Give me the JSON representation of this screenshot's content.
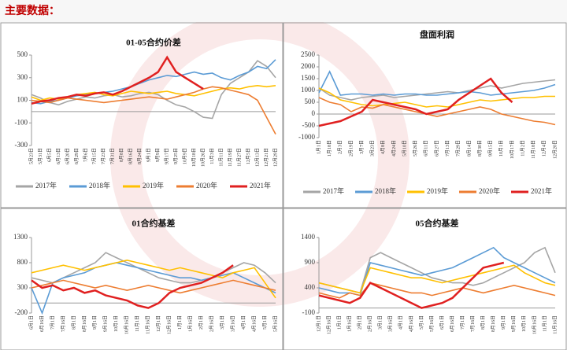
{
  "header": {
    "title": "主要数据："
  },
  "chart_data": [
    {
      "type": "line",
      "title": "01-05合约价差",
      "categories": [
        "5月23日",
        "5月31日",
        "6月5日",
        "6月13日",
        "6月20日",
        "6月29日",
        "7月6日",
        "7月15日",
        "7月23日",
        "7月31日",
        "8月8日",
        "8月16日",
        "8月24日",
        "9月1日",
        "9月9日",
        "9月17日",
        "9月25日",
        "10月9日",
        "10月18日",
        "10月26日",
        "11月3日",
        "11月11日",
        "11月19日",
        "11月27日",
        "12月5日",
        "12月13日",
        "12月21日",
        "12月29日"
      ],
      "ylim": [
        -300,
        500
      ],
      "yticks": [
        -300,
        -100,
        100,
        300,
        500
      ],
      "series": [
        {
          "name": "2017年",
          "color": "#a5a5a5",
          "values": [
            150,
            120,
            80,
            60,
            90,
            110,
            130,
            120,
            140,
            150,
            130,
            140,
            160,
            170,
            150,
            100,
            60,
            40,
            0,
            -50,
            -60,
            150,
            250,
            300,
            350,
            450,
            400,
            300
          ]
        },
        {
          "name": "2018年",
          "color": "#5b9bd5",
          "values": [
            80,
            70,
            90,
            100,
            120,
            140,
            150,
            160,
            170,
            180,
            200,
            220,
            250,
            280,
            300,
            320,
            310,
            330,
            350,
            330,
            340,
            300,
            280,
            320,
            350,
            400,
            380,
            460
          ]
        },
        {
          "name": "2019年",
          "color": "#ffc000",
          "values": [
            130,
            100,
            120,
            110,
            130,
            150,
            160,
            170,
            150,
            140,
            160,
            180,
            170,
            160,
            170,
            180,
            160,
            150,
            140,
            160,
            180,
            200,
            210,
            200,
            220,
            230,
            220,
            230
          ]
        },
        {
          "name": "2020年",
          "color": "#ed7d31",
          "values": [
            100,
            90,
            80,
            100,
            120,
            110,
            100,
            90,
            80,
            90,
            100,
            110,
            120,
            130,
            120,
            110,
            130,
            150,
            170,
            200,
            220,
            210,
            190,
            170,
            150,
            100,
            -50,
            -200
          ]
        },
        {
          "name": "2021年",
          "color": "#e02020",
          "values": [
            70,
            90,
            100,
            120,
            130,
            150,
            140,
            160,
            170,
            150,
            180,
            220,
            260,
            300,
            350,
            480,
            350,
            300,
            250,
            200,
            null,
            null,
            null,
            null,
            null,
            null,
            null,
            null
          ]
        }
      ]
    },
    {
      "type": "line",
      "title": "盘面利润",
      "categories": [
        "1月1日",
        "1月18日",
        "2月3日",
        "2月19日",
        "3月7日",
        "3月23日",
        "4月8日",
        "4月24日",
        "5月10日",
        "5月26日",
        "6月11日",
        "6月27日",
        "7月13日",
        "7月29日",
        "8月14日",
        "8月30日",
        "9月15日",
        "10月1日",
        "10月17日",
        "11月2日",
        "11月18日",
        "12月4日",
        "12月20日"
      ],
      "ylim": [
        -1000,
        2500
      ],
      "yticks": [
        -1000,
        -500,
        0,
        500,
        1000,
        1500,
        2000,
        2500
      ],
      "series": [
        {
          "name": "2017年",
          "color": "#a5a5a5",
          "values": [
            1100,
            800,
            700,
            600,
            700,
            750,
            800,
            700,
            750,
            800,
            850,
            900,
            950,
            900,
            1000,
            1100,
            1200,
            1100,
            1200,
            1300,
            1350,
            1400,
            1450
          ]
        },
        {
          "name": "2018年",
          "color": "#5b9bd5",
          "values": [
            900,
            1800,
            800,
            850,
            850,
            800,
            850,
            800,
            850,
            850,
            800,
            800,
            850,
            900,
            950,
            900,
            800,
            850,
            900,
            950,
            1000,
            1100,
            1250
          ]
        },
        {
          "name": "2019年",
          "color": "#ffc000",
          "values": [
            1100,
            900,
            600,
            500,
            400,
            350,
            400,
            450,
            500,
            400,
            300,
            350,
            300,
            400,
            500,
            600,
            550,
            600,
            650,
            700,
            700,
            750,
            750
          ]
        },
        {
          "name": "2020年",
          "color": "#ed7d31",
          "values": [
            700,
            500,
            400,
            100,
            300,
            250,
            400,
            300,
            200,
            100,
            0,
            -100,
            0,
            100,
            200,
            300,
            200,
            0,
            -100,
            -200,
            -300,
            -350,
            -450
          ]
        },
        {
          "name": "2021年",
          "color": "#e02020",
          "values": [
            -500,
            -400,
            -300,
            -100,
            100,
            600,
            500,
            400,
            300,
            200,
            0,
            100,
            200,
            600,
            900,
            1200,
            1500,
            900,
            500,
            null,
            null,
            null,
            null
          ]
        }
      ]
    },
    {
      "type": "line",
      "title": "01合约基差",
      "categories": [
        "6月1日",
        "6月16日",
        "7月1日",
        "7月16日",
        "8月1日",
        "8月16日",
        "9月1日",
        "9月16日",
        "10月1日",
        "10月16日",
        "11月1日",
        "11月16日",
        "12月1日",
        "12月16日",
        "1月1日",
        "1月16日",
        "2月1日",
        "2月16日",
        "3月1日",
        "3月16日",
        "4月1日",
        "4月16日",
        "5月1日",
        "5月16日"
      ],
      "ylim": [
        -200,
        1300
      ],
      "yticks": [
        -200,
        300,
        800,
        1300
      ],
      "series": [
        {
          "color": "#a5a5a5",
          "values": [
            500,
            450,
            400,
            500,
            600,
            700,
            800,
            1000,
            900,
            800,
            700,
            600,
            500,
            450,
            400,
            400,
            450,
            500,
            600,
            700,
            800,
            750,
            600,
            400
          ]
        },
        {
          "color": "#5b9bd5",
          "values": [
            300,
            -200,
            400,
            500,
            550,
            600,
            700,
            750,
            800,
            750,
            700,
            650,
            600,
            550,
            500,
            500,
            450,
            500,
            550,
            600,
            500,
            400,
            300,
            200
          ]
        },
        {
          "color": "#ffc000",
          "values": [
            600,
            650,
            700,
            750,
            700,
            650,
            700,
            750,
            800,
            850,
            800,
            750,
            700,
            650,
            700,
            650,
            600,
            550,
            500,
            600,
            650,
            700,
            400,
            100
          ]
        },
        {
          "color": "#ed7d31",
          "values": [
            300,
            350,
            400,
            450,
            400,
            350,
            300,
            350,
            300,
            250,
            300,
            350,
            300,
            250,
            200,
            250,
            300,
            350,
            400,
            450,
            400,
            350,
            300,
            250
          ]
        },
        {
          "color": "#e02020",
          "values": [
            450,
            300,
            350,
            250,
            300,
            200,
            250,
            150,
            100,
            50,
            -50,
            -100,
            0,
            200,
            300,
            350,
            400,
            500,
            600,
            750,
            null,
            null,
            null,
            null
          ]
        }
      ]
    },
    {
      "type": "line",
      "title": "05合约基差",
      "categories": [
        "12月1日",
        "12月16日",
        "1月1日",
        "1月16日",
        "2月1日",
        "2月16日",
        "3月1日",
        "3月16日",
        "4月1日",
        "4月16日",
        "5月1日",
        "5月16日",
        "6月1日",
        "6月16日",
        "7月1日",
        "7月16日",
        "8月1日",
        "8月16日",
        "9月1日",
        "9月16日",
        "10月1日",
        "10月16日",
        "11月1日",
        "11月16日"
      ],
      "ylim": [
        -100,
        1400
      ],
      "yticks": [
        -100,
        400,
        900,
        1400
      ],
      "series": [
        {
          "color": "#a5a5a5",
          "values": [
            500,
            450,
            400,
            350,
            300,
            1000,
            1100,
            1000,
            900,
            800,
            700,
            600,
            550,
            500,
            500,
            450,
            500,
            600,
            700,
            800,
            900,
            1100,
            1200,
            700
          ]
        },
        {
          "color": "#5b9bd5",
          "values": [
            400,
            350,
            300,
            300,
            250,
            900,
            850,
            800,
            750,
            700,
            650,
            700,
            750,
            800,
            900,
            1000,
            1100,
            1200,
            1000,
            900,
            800,
            700,
            600,
            500
          ]
        },
        {
          "color": "#ffc000",
          "values": [
            500,
            450,
            400,
            350,
            300,
            800,
            750,
            700,
            650,
            600,
            600,
            550,
            500,
            550,
            600,
            650,
            700,
            750,
            800,
            850,
            700,
            600,
            500,
            450
          ]
        },
        {
          "color": "#ed7d31",
          "values": [
            300,
            250,
            200,
            300,
            250,
            500,
            450,
            400,
            350,
            300,
            300,
            250,
            300,
            350,
            400,
            350,
            300,
            350,
            400,
            450,
            400,
            350,
            300,
            250
          ]
        },
        {
          "color": "#e02020",
          "values": [
            250,
            200,
            150,
            100,
            200,
            500,
            400,
            300,
            200,
            100,
            0,
            50,
            100,
            200,
            400,
            600,
            800,
            850,
            900,
            null,
            null,
            null,
            null,
            null
          ]
        }
      ]
    }
  ]
}
